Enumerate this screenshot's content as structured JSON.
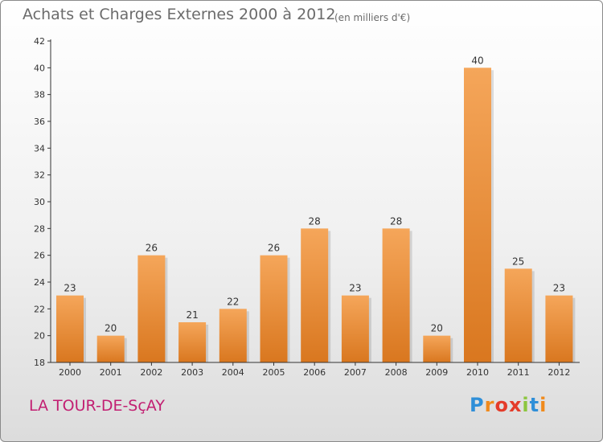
{
  "chart_data": {
    "type": "bar",
    "title": "Achats et Charges Externes 2000 à 2012",
    "subtitle": "(en milliers d'€)",
    "categories": [
      "2000",
      "2001",
      "2002",
      "2003",
      "2004",
      "2005",
      "2006",
      "2007",
      "2008",
      "2009",
      "2010",
      "2011",
      "2012"
    ],
    "values": [
      23,
      20,
      26,
      21,
      22,
      26,
      28,
      23,
      28,
      20,
      40,
      25,
      23
    ],
    "ylim": [
      18,
      42
    ],
    "yticks": [
      18,
      20,
      22,
      24,
      26,
      28,
      30,
      32,
      34,
      36,
      38,
      40,
      42
    ],
    "grid": false,
    "colors": {
      "bar_light": "#f5a65a",
      "bar_dark": "#d9771f",
      "axis": "#333333"
    }
  },
  "footer": {
    "location": "LA TOUR-DE-SçAY",
    "brand_letters": [
      "P",
      "r",
      "o",
      "x",
      "i",
      "t",
      "i"
    ],
    "brand_colors": [
      "#2f8fd8",
      "#f08a1c",
      "#e43c2a",
      "#e43c2a",
      "#8cc63f",
      "#2f8fd8",
      "#f08a1c"
    ]
  }
}
